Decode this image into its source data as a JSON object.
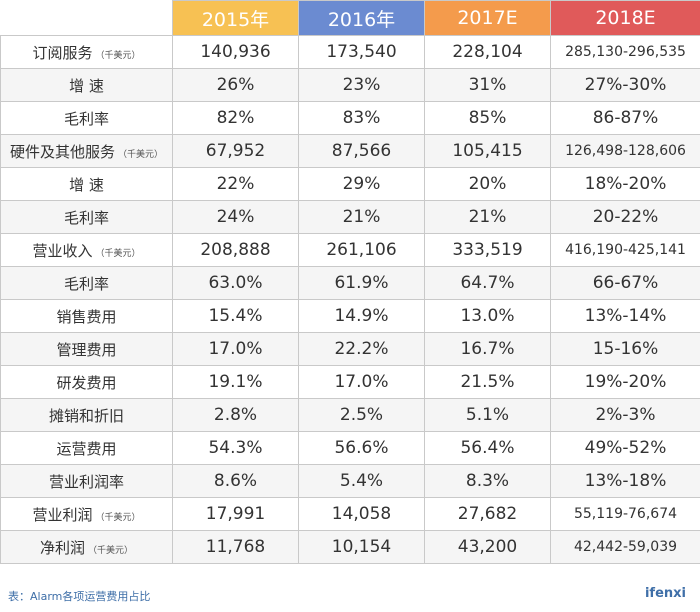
{
  "table": {
    "headers": [
      {
        "label": "2015年",
        "color": "#f7c153"
      },
      {
        "label": "2016年",
        "color": "#6b8bd1"
      },
      {
        "label": "2017E",
        "color": "#f49b4c"
      },
      {
        "label": "2018E",
        "color": "#e05a5a"
      }
    ],
    "rows": [
      {
        "label": "订阅服务",
        "unit": "（千美元）",
        "values": [
          "140,936",
          "173,540",
          "228,104",
          "285,130-296,535"
        ]
      },
      {
        "label": "增  速",
        "unit": "",
        "values": [
          "26%",
          "23%",
          "31%",
          "27%-30%"
        ]
      },
      {
        "label": "毛利率",
        "unit": "",
        "values": [
          "82%",
          "83%",
          "85%",
          "86-87%"
        ]
      },
      {
        "label": "硬件及其他服务",
        "unit": "（千美元）",
        "values": [
          "67,952",
          "87,566",
          "105,415",
          "126,498-128,606"
        ]
      },
      {
        "label": "增  速",
        "unit": "",
        "values": [
          "22%",
          "29%",
          "20%",
          "18%-20%"
        ]
      },
      {
        "label": "毛利率",
        "unit": "",
        "values": [
          "24%",
          "21%",
          "21%",
          "20-22%"
        ]
      },
      {
        "label": "营业收入",
        "unit": "（千美元）",
        "values": [
          "208,888",
          "261,106",
          "333,519",
          "416,190-425,141"
        ]
      },
      {
        "label": "毛利率",
        "unit": "",
        "values": [
          "63.0%",
          "61.9%",
          "64.7%",
          "66-67%"
        ]
      },
      {
        "label": "销售费用",
        "unit": "",
        "values": [
          "15.4%",
          "14.9%",
          "13.0%",
          "13%-14%"
        ]
      },
      {
        "label": "管理费用",
        "unit": "",
        "values": [
          "17.0%",
          "22.2%",
          "16.7%",
          "15-16%"
        ]
      },
      {
        "label": "研发费用",
        "unit": "",
        "values": [
          "19.1%",
          "17.0%",
          "21.5%",
          "19%-20%"
        ]
      },
      {
        "label": "摊销和折旧",
        "unit": "",
        "values": [
          "2.8%",
          "2.5%",
          "5.1%",
          "2%-3%"
        ]
      },
      {
        "label": "运营费用",
        "unit": "",
        "values": [
          "54.3%",
          "56.6%",
          "56.4%",
          "49%-52%"
        ]
      },
      {
        "label": "营业利润率",
        "unit": "",
        "values": [
          "8.6%",
          "5.4%",
          "8.3%",
          "13%-18%"
        ]
      },
      {
        "label": "营业利润",
        "unit": "（千美元）",
        "values": [
          "17,991",
          "14,058",
          "27,682",
          "55,119-76,674"
        ]
      },
      {
        "label": "净利润",
        "unit": "（千美元）",
        "values": [
          "11,768",
          "10,154",
          "43,200",
          "42,442-59,039"
        ]
      }
    ]
  },
  "caption": "表：Alarm各项运营费用占比",
  "brand": "ifenxi"
}
